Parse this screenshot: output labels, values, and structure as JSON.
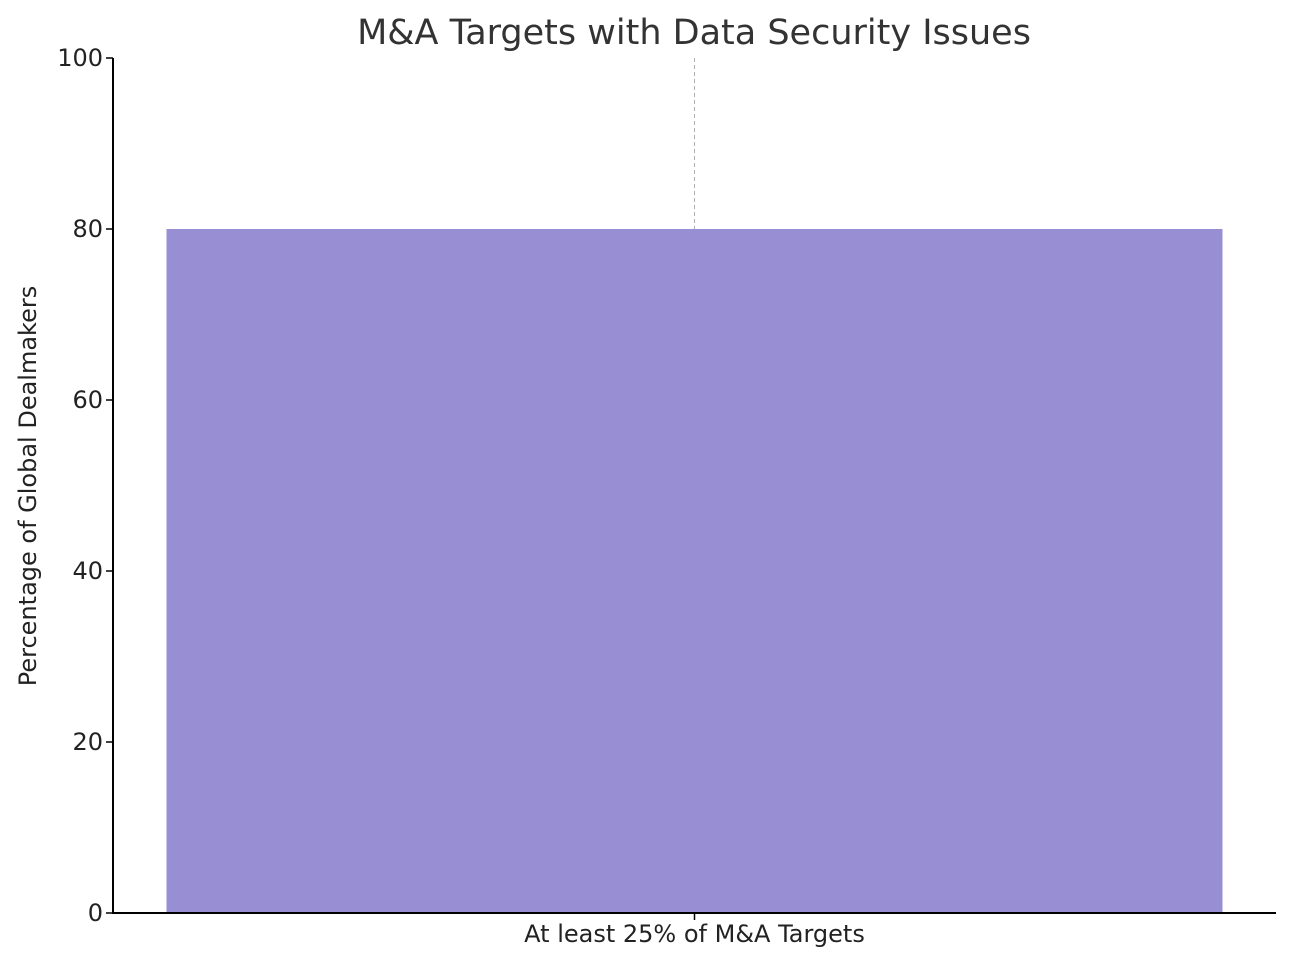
{
  "chart_data": {
    "type": "bar",
    "title": "M&A Targets with Data Security Issues",
    "categories": [
      "At least 25% of M&A Targets"
    ],
    "values": [
      80
    ],
    "xlabel": "",
    "ylabel": "Percentage of Global Dealmakers",
    "ylim": [
      0,
      100
    ],
    "yticks": [
      0,
      20,
      40,
      60,
      80,
      100
    ],
    "grid": "x-axis vertical dashed",
    "bar_color": "#978ed4"
  }
}
